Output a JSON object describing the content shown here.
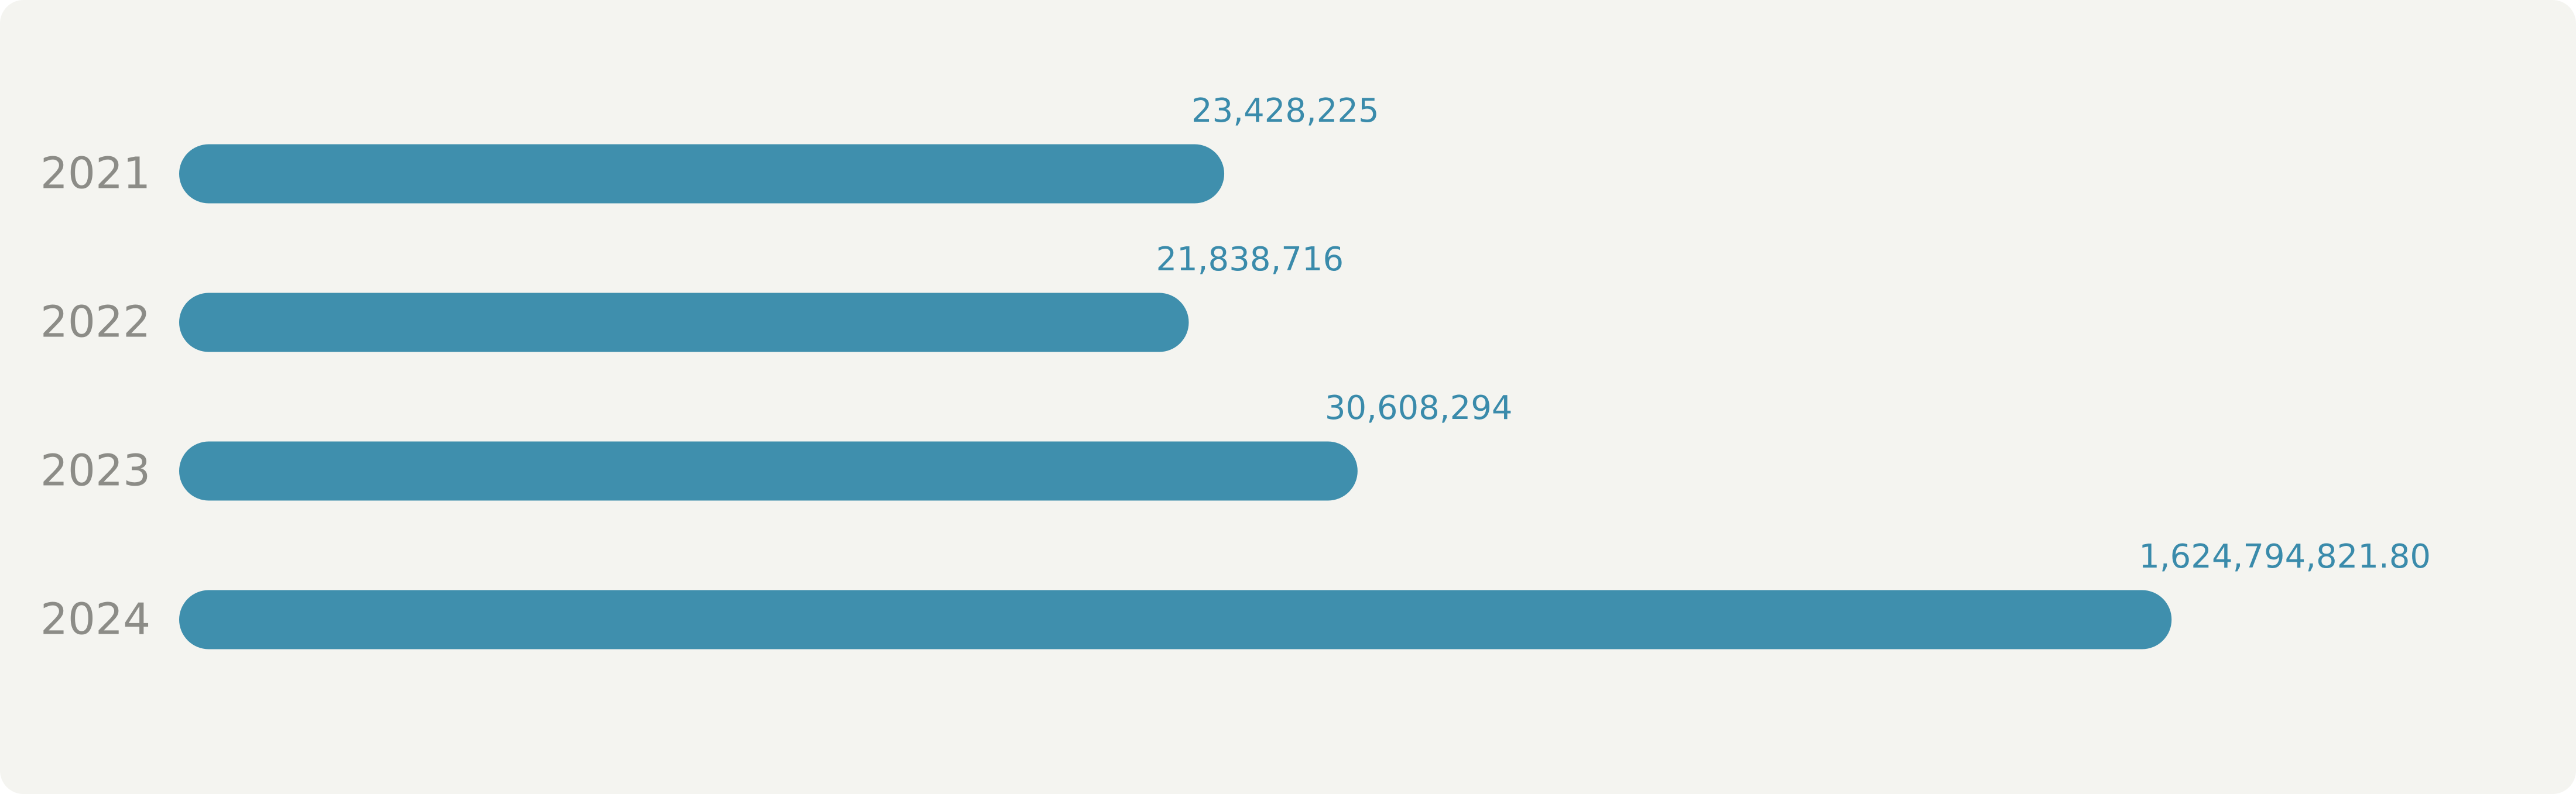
{
  "chart_data": {
    "type": "bar",
    "categories": [
      "2021",
      "2022",
      "2023",
      "2024"
    ],
    "values": [
      23428225,
      21838716,
      30608294,
      1624794821.8
    ],
    "value_labels": [
      "23,428,225",
      "21,838,716",
      "30,608,294",
      "1,624,794,821.80"
    ],
    "color": "#3f8fad"
  }
}
